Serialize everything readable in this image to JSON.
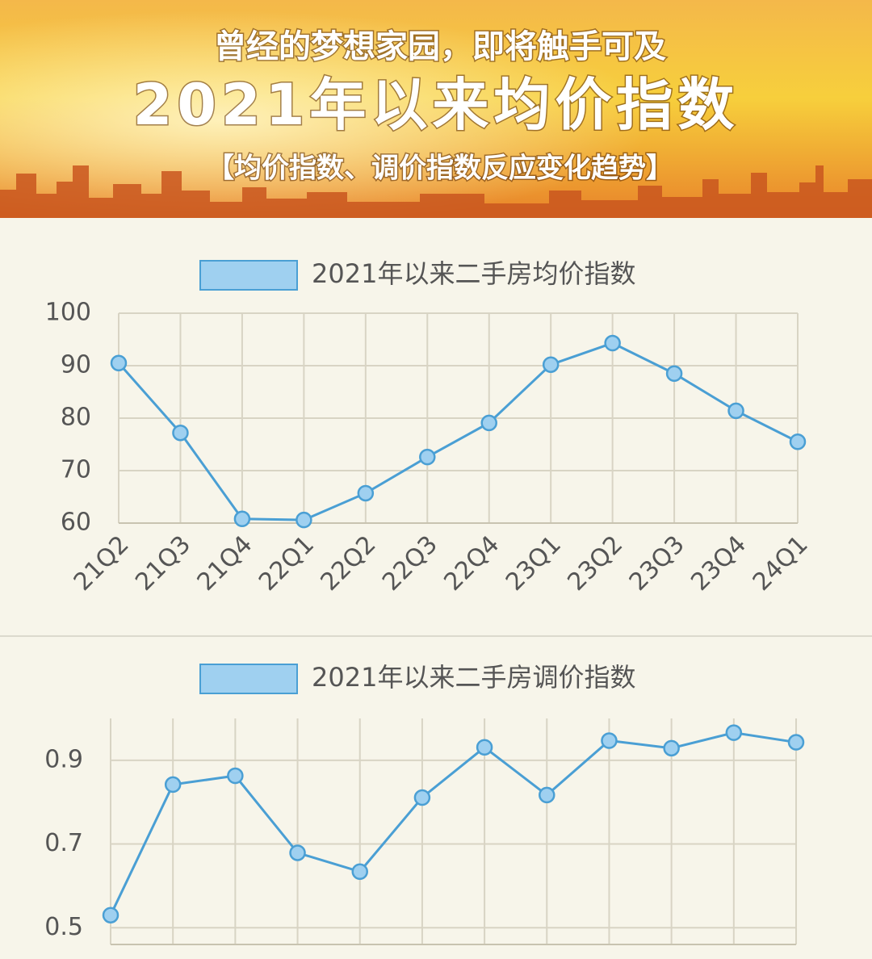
{
  "header": {
    "line1": "曾经的梦想家园，即将触手可及",
    "title": "2021年以来均价指数",
    "subtitle": "【均价指数、调价指数反应变化趋势】"
  },
  "chart_data": [
    {
      "type": "line",
      "series": [
        {
          "name": "2021年以来二手房均价指数",
          "color": "#4a9fd4",
          "values": [
            90.5,
            77.2,
            60.8,
            60.6,
            65.7,
            72.6,
            79.1,
            90.2,
            94.3,
            88.5,
            81.4,
            75.5
          ]
        }
      ],
      "categories": [
        "21Q2",
        "21Q3",
        "21Q4",
        "22Q1",
        "22Q2",
        "22Q3",
        "22Q4",
        "23Q1",
        "23Q2",
        "23Q3",
        "23Q4",
        "24Q1"
      ],
      "ylim": [
        60,
        100
      ],
      "yticks": [
        60,
        70,
        80,
        90,
        100
      ],
      "grid": true
    },
    {
      "type": "line",
      "series": [
        {
          "name": "2021年以来二手房调价指数",
          "color": "#4a9fd4",
          "values": [
            0.53,
            0.842,
            0.863,
            0.679,
            0.634,
            0.811,
            0.931,
            0.817,
            0.947,
            0.929,
            0.966,
            0.943
          ]
        }
      ],
      "categories": [
        null,
        null,
        null,
        null,
        null,
        null,
        null,
        null,
        null,
        null,
        null,
        null
      ],
      "ylim": [
        0.46,
        1.0
      ],
      "yticks": [
        0.5,
        0.7,
        0.9
      ],
      "grid": true
    }
  ]
}
